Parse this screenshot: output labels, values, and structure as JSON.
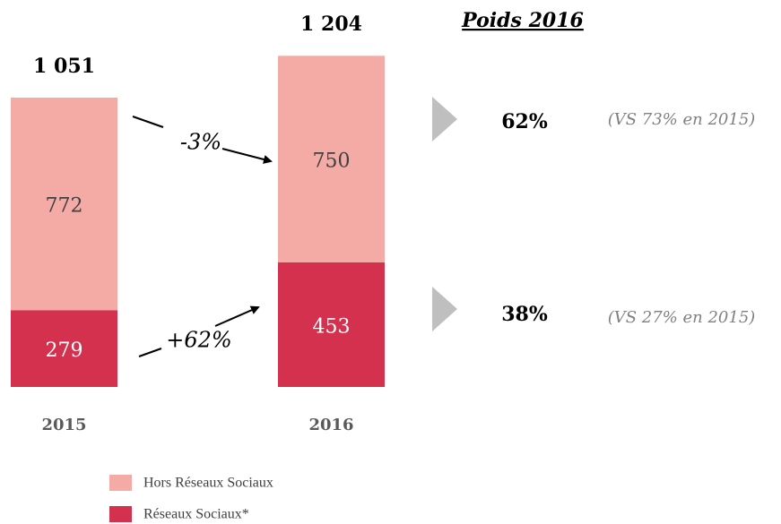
{
  "chart_data": {
    "type": "bar",
    "stacked": true,
    "categories": [
      "2015",
      "2016"
    ],
    "series": [
      {
        "name": "Réseaux Sociaux*",
        "color": "#d4314f",
        "values": [
          279,
          453
        ]
      },
      {
        "name": "Hors Réseaux Sociaux",
        "color": "#f4aba6",
        "values": [
          772,
          750
        ]
      }
    ],
    "totals": [
      1051,
      1204
    ],
    "total_labels": [
      "1 051",
      "1 204"
    ],
    "changes": [
      "+62%",
      "-3%"
    ],
    "weights": {
      "title": "Poids 2016",
      "items": [
        {
          "value": "38%",
          "note": "(VS 27% en 2015)"
        },
        {
          "value": "62%",
          "note": "(VS 73% en 2015)"
        }
      ]
    }
  }
}
